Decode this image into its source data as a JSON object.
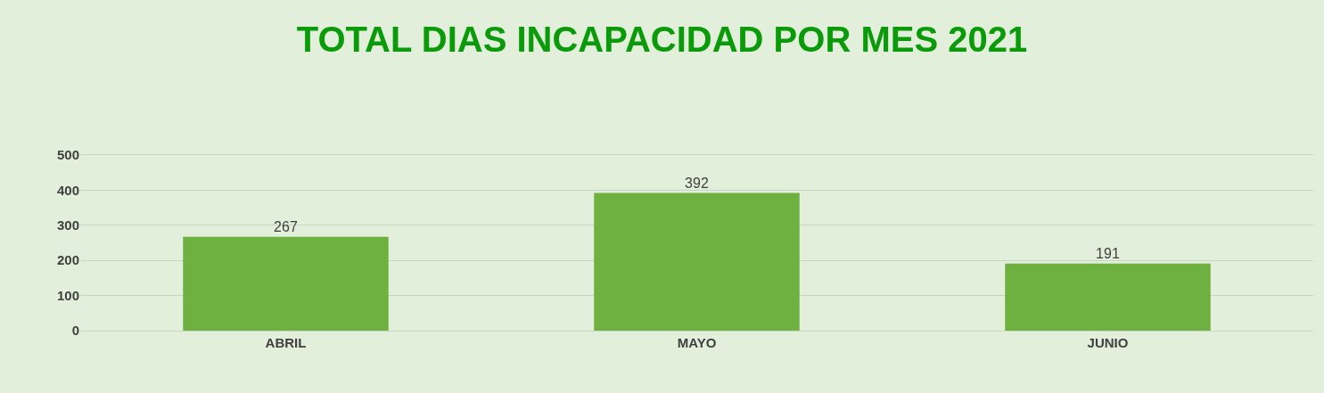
{
  "chart_data": {
    "type": "bar",
    "title": "TOTAL DIAS INCAPACIDAD POR MES 2021",
    "categories": [
      "ABRIL",
      "MAYO",
      "JUNIO"
    ],
    "values": [
      267,
      392,
      191
    ],
    "color": "#6fb140",
    "ylim": [
      0,
      500
    ],
    "yticks": [
      0,
      100,
      200,
      300,
      400,
      500
    ],
    "grid": "y",
    "data_labels": true
  }
}
